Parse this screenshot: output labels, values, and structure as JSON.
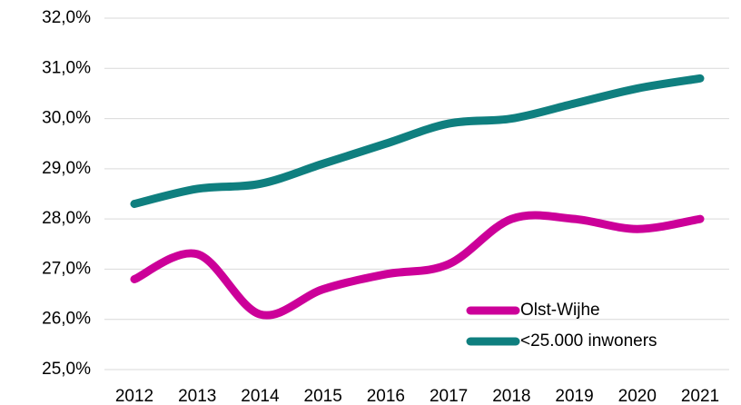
{
  "chart_data": {
    "type": "line",
    "categories": [
      "2012",
      "2013",
      "2014",
      "2015",
      "2016",
      "2017",
      "2018",
      "2019",
      "2020",
      "2021"
    ],
    "series": [
      {
        "name": "Olst-Wijhe",
        "color": "#cc0099",
        "values": [
          26.8,
          27.3,
          26.1,
          26.6,
          26.9,
          27.1,
          28.0,
          28.0,
          27.8,
          28.0
        ]
      },
      {
        "name": "<25.000 inwoners",
        "color": "#0f7f7f",
        "values": [
          28.3,
          28.6,
          28.7,
          29.1,
          29.5,
          29.9,
          30.0,
          30.3,
          30.6,
          30.8
        ]
      }
    ],
    "ylim": [
      25,
      32
    ],
    "yticks": [
      {
        "value": 25,
        "label": "25,0%"
      },
      {
        "value": 26,
        "label": "26,0%"
      },
      {
        "value": 27,
        "label": "27,0%"
      },
      {
        "value": 28,
        "label": "28,0%"
      },
      {
        "value": 29,
        "label": "29,0%"
      },
      {
        "value": 30,
        "label": "30,0%"
      },
      {
        "value": 31,
        "label": "31,0%"
      },
      {
        "value": 32,
        "label": "32,0%"
      }
    ],
    "grid": true,
    "smooth": true,
    "legend": "lower right"
  }
}
